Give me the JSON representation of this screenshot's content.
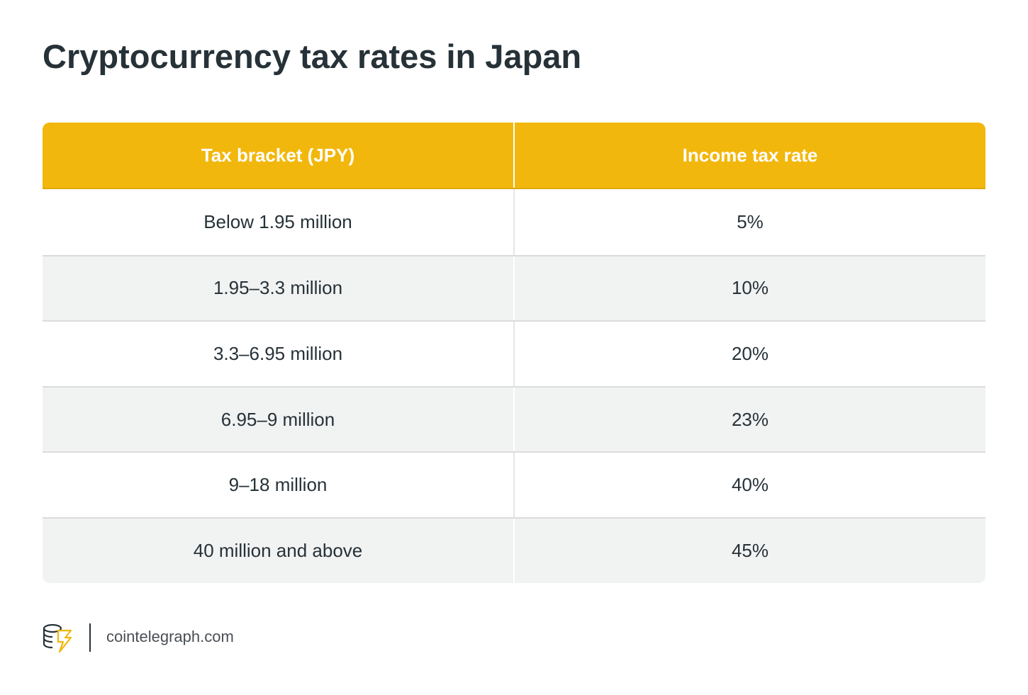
{
  "header": {
    "title": "Cryptocurrency tax rates in Japan"
  },
  "table": {
    "columns": [
      "Tax bracket (JPY)",
      "Income tax rate"
    ],
    "rows": [
      [
        "Below 1.95 million",
        "5%"
      ],
      [
        "1.95–3.3 million",
        "10%"
      ],
      [
        "3.3–6.95 million",
        "20%"
      ],
      [
        "6.95–9 million",
        "23%"
      ],
      [
        "9–18 million",
        "40%"
      ],
      [
        "40 million and above",
        "45%"
      ]
    ]
  },
  "footer": {
    "source": "cointelegraph.com"
  }
}
